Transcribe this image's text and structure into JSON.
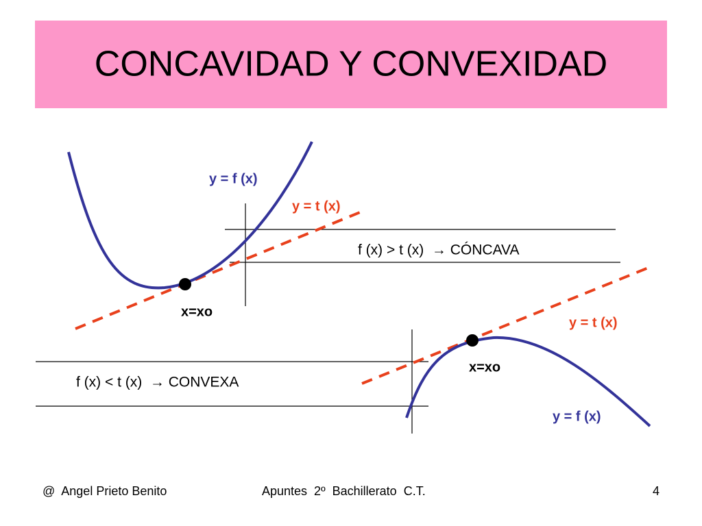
{
  "header": {
    "title": "CONCAVIDAD Y CONVEXIDAD"
  },
  "diagrams": [
    {
      "curve_label": "y = f (x)",
      "tangent_label": "y = t (x)",
      "condition": "f (x) > t (x)  → CÓNCAVA",
      "point_label": "x=xo"
    },
    {
      "curve_label": "y = f (x)",
      "tangent_label": "y = t (x)",
      "condition": "f (x) < t (x)  → CONVEXA",
      "point_label": "x=xo"
    }
  ],
  "footer": {
    "author": "@  Angel Prieto Benito",
    "course": "Apuntes  2º  Bachillerato  C.T.",
    "page": "4"
  }
}
